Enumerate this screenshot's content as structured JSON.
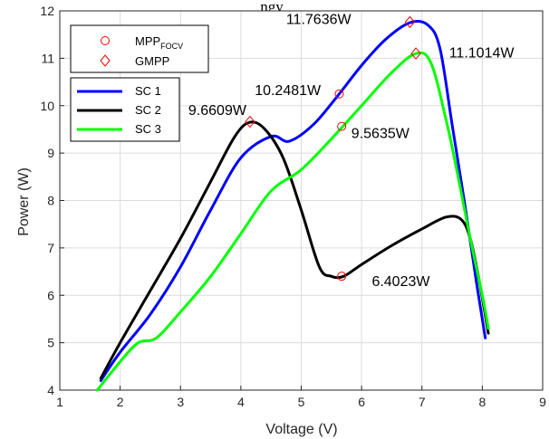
{
  "chart_data": {
    "type": "line",
    "title": "ngy",
    "xlabel": "Voltage (V)",
    "ylabel": "Power (W)",
    "xlim": [
      1,
      9
    ],
    "ylim": [
      4,
      12
    ],
    "xticks": [
      1,
      2,
      3,
      4,
      5,
      6,
      7,
      8,
      9
    ],
    "yticks": [
      4,
      5,
      6,
      7,
      8,
      9,
      10,
      11,
      12
    ],
    "grid": true,
    "series": [
      {
        "name": "SC 1",
        "color": "#0000ff",
        "points": [
          [
            1.68,
            4.2
          ],
          [
            2.0,
            4.8
          ],
          [
            2.5,
            5.6
          ],
          [
            3.0,
            6.6
          ],
          [
            3.5,
            7.8
          ],
          [
            4.0,
            8.9
          ],
          [
            4.5,
            9.35
          ],
          [
            4.8,
            9.25
          ],
          [
            5.2,
            9.6
          ],
          [
            5.6,
            10.2
          ],
          [
            6.0,
            10.85
          ],
          [
            6.4,
            11.4
          ],
          [
            6.8,
            11.75
          ],
          [
            7.1,
            11.7
          ],
          [
            7.3,
            11.2
          ],
          [
            7.5,
            9.6
          ],
          [
            7.7,
            8.0
          ],
          [
            7.9,
            6.3
          ],
          [
            8.05,
            5.1
          ]
        ]
      },
      {
        "name": "SC 2",
        "color": "#000000",
        "points": [
          [
            1.68,
            4.25
          ],
          [
            2.0,
            5.0
          ],
          [
            2.5,
            6.1
          ],
          [
            3.0,
            7.2
          ],
          [
            3.5,
            8.4
          ],
          [
            3.9,
            9.35
          ],
          [
            4.15,
            9.65
          ],
          [
            4.4,
            9.5
          ],
          [
            4.7,
            8.9
          ],
          [
            5.0,
            7.8
          ],
          [
            5.3,
            6.6
          ],
          [
            5.5,
            6.4
          ],
          [
            5.7,
            6.4
          ],
          [
            6.0,
            6.65
          ],
          [
            6.5,
            7.05
          ],
          [
            7.0,
            7.4
          ],
          [
            7.4,
            7.65
          ],
          [
            7.65,
            7.6
          ],
          [
            7.8,
            7.2
          ],
          [
            7.95,
            6.3
          ],
          [
            8.1,
            5.2
          ]
        ]
      },
      {
        "name": "SC 3",
        "color": "#00ff00",
        "points": [
          [
            1.62,
            4.0
          ],
          [
            2.0,
            4.6
          ],
          [
            2.3,
            5.0
          ],
          [
            2.6,
            5.1
          ],
          [
            3.0,
            5.65
          ],
          [
            3.5,
            6.4
          ],
          [
            4.0,
            7.3
          ],
          [
            4.5,
            8.2
          ],
          [
            5.0,
            8.65
          ],
          [
            5.5,
            9.3
          ],
          [
            6.0,
            10.0
          ],
          [
            6.5,
            10.7
          ],
          [
            6.9,
            11.1
          ],
          [
            7.15,
            10.9
          ],
          [
            7.4,
            9.7
          ],
          [
            7.6,
            8.5
          ],
          [
            7.8,
            7.2
          ],
          [
            8.0,
            6.0
          ],
          [
            8.1,
            5.3
          ]
        ]
      }
    ],
    "markers": [
      {
        "type": "circle",
        "x": 5.63,
        "y": 10.2481
      },
      {
        "type": "circle",
        "x": 5.67,
        "y": 9.5635
      },
      {
        "type": "circle",
        "x": 5.67,
        "y": 6.4023
      },
      {
        "type": "diamond",
        "x": 4.15,
        "y": 9.6609
      },
      {
        "type": "diamond",
        "x": 6.8,
        "y": 11.7636
      },
      {
        "type": "diamond",
        "x": 6.9,
        "y": 11.1014
      }
    ],
    "marker_color": "#ff0000",
    "annotations": [
      {
        "text": "11.7636W",
        "x": 4.75,
        "y": 11.72
      },
      {
        "text": "11.1014W",
        "x": 7.45,
        "y": 11.02
      },
      {
        "text": "10.2481W",
        "x": 4.23,
        "y": 10.22
      },
      {
        "text": "9.6609W",
        "x": 3.13,
        "y": 9.8
      },
      {
        "text": "9.5635W",
        "x": 5.83,
        "y": 9.32
      },
      {
        "text": "6.4023W",
        "x": 6.17,
        "y": 6.2
      }
    ],
    "legend_markers": {
      "entries": [
        {
          "main": "MPP",
          "sub": "FOCV",
          "marker": "circle"
        },
        {
          "main": "GMPP",
          "sub": "",
          "marker": "diamond"
        }
      ],
      "placement": "top-left"
    },
    "legend_lines": {
      "entries": [
        "SC 1",
        "SC 2",
        "SC 3"
      ],
      "placement": "upper-left"
    }
  }
}
